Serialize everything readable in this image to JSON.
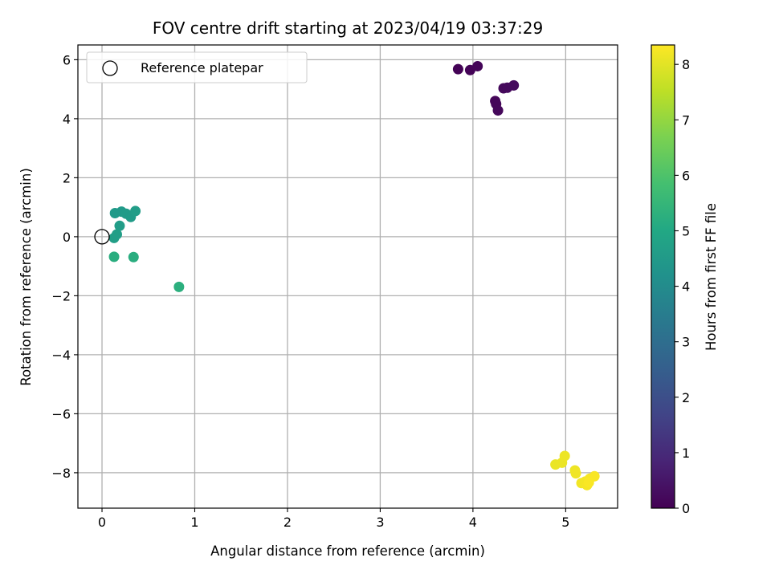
{
  "chart_data": {
    "type": "scatter",
    "title": "FOV centre drift starting at 2023/04/19 03:37:29",
    "xlabel": "Angular distance from reference (arcmin)",
    "ylabel": "Rotation from reference (arcmin)",
    "xlim": [
      -0.26,
      5.56
    ],
    "ylim": [
      -9.2,
      6.5
    ],
    "xticks": [
      0,
      1,
      2,
      3,
      4,
      5
    ],
    "yticks": [
      -8,
      -6,
      -4,
      -2,
      0,
      2,
      4,
      6
    ],
    "grid": true,
    "legend": {
      "location": "top-left",
      "entries": [
        "Reference platepar"
      ]
    },
    "reference_point": {
      "x": 0.0,
      "y": 0.0,
      "label": "Reference platepar"
    },
    "colorbar": {
      "label": "Hours from first FF file",
      "range": [
        0,
        8.35
      ],
      "ticks": [
        0,
        1,
        2,
        3,
        4,
        5,
        6,
        7,
        8
      ],
      "colormap": "viridis"
    },
    "points": [
      {
        "x": 3.84,
        "y": 5.68,
        "c": 0.05
      },
      {
        "x": 3.97,
        "y": 5.65,
        "c": 0.08
      },
      {
        "x": 4.05,
        "y": 5.78,
        "c": 0.1
      },
      {
        "x": 4.24,
        "y": 4.6,
        "c": 0.12
      },
      {
        "x": 4.25,
        "y": 4.5,
        "c": 0.14
      },
      {
        "x": 4.27,
        "y": 4.28,
        "c": 0.16
      },
      {
        "x": 4.33,
        "y": 5.03,
        "c": 0.18
      },
      {
        "x": 4.37,
        "y": 5.05,
        "c": 0.2
      },
      {
        "x": 4.44,
        "y": 5.13,
        "c": 0.22
      },
      {
        "x": 0.14,
        "y": 0.8,
        "c": 4.5
      },
      {
        "x": 0.21,
        "y": 0.85,
        "c": 4.5
      },
      {
        "x": 0.26,
        "y": 0.78,
        "c": 4.55
      },
      {
        "x": 0.31,
        "y": 0.67,
        "c": 4.55
      },
      {
        "x": 0.36,
        "y": 0.87,
        "c": 4.6
      },
      {
        "x": 0.19,
        "y": 0.37,
        "c": 4.6
      },
      {
        "x": 0.16,
        "y": 0.08,
        "c": 4.65
      },
      {
        "x": 0.13,
        "y": -0.04,
        "c": 4.65
      },
      {
        "x": 0.13,
        "y": -0.68,
        "c": 5.2
      },
      {
        "x": 0.34,
        "y": -0.69,
        "c": 5.2
      },
      {
        "x": 0.83,
        "y": -1.7,
        "c": 5.25
      },
      {
        "x": 4.89,
        "y": -7.72,
        "c": 8.1
      },
      {
        "x": 4.96,
        "y": -7.66,
        "c": 8.12
      },
      {
        "x": 4.99,
        "y": -7.43,
        "c": 8.14
      },
      {
        "x": 5.1,
        "y": -7.92,
        "c": 8.16
      },
      {
        "x": 5.11,
        "y": -8.02,
        "c": 8.18
      },
      {
        "x": 5.17,
        "y": -8.35,
        "c": 8.2
      },
      {
        "x": 5.21,
        "y": -8.3,
        "c": 8.22
      },
      {
        "x": 5.23,
        "y": -8.42,
        "c": 8.24
      },
      {
        "x": 5.26,
        "y": -8.2,
        "c": 8.26
      },
      {
        "x": 5.31,
        "y": -8.12,
        "c": 8.28
      },
      {
        "x": 5.25,
        "y": -8.33,
        "c": 8.3
      }
    ]
  }
}
